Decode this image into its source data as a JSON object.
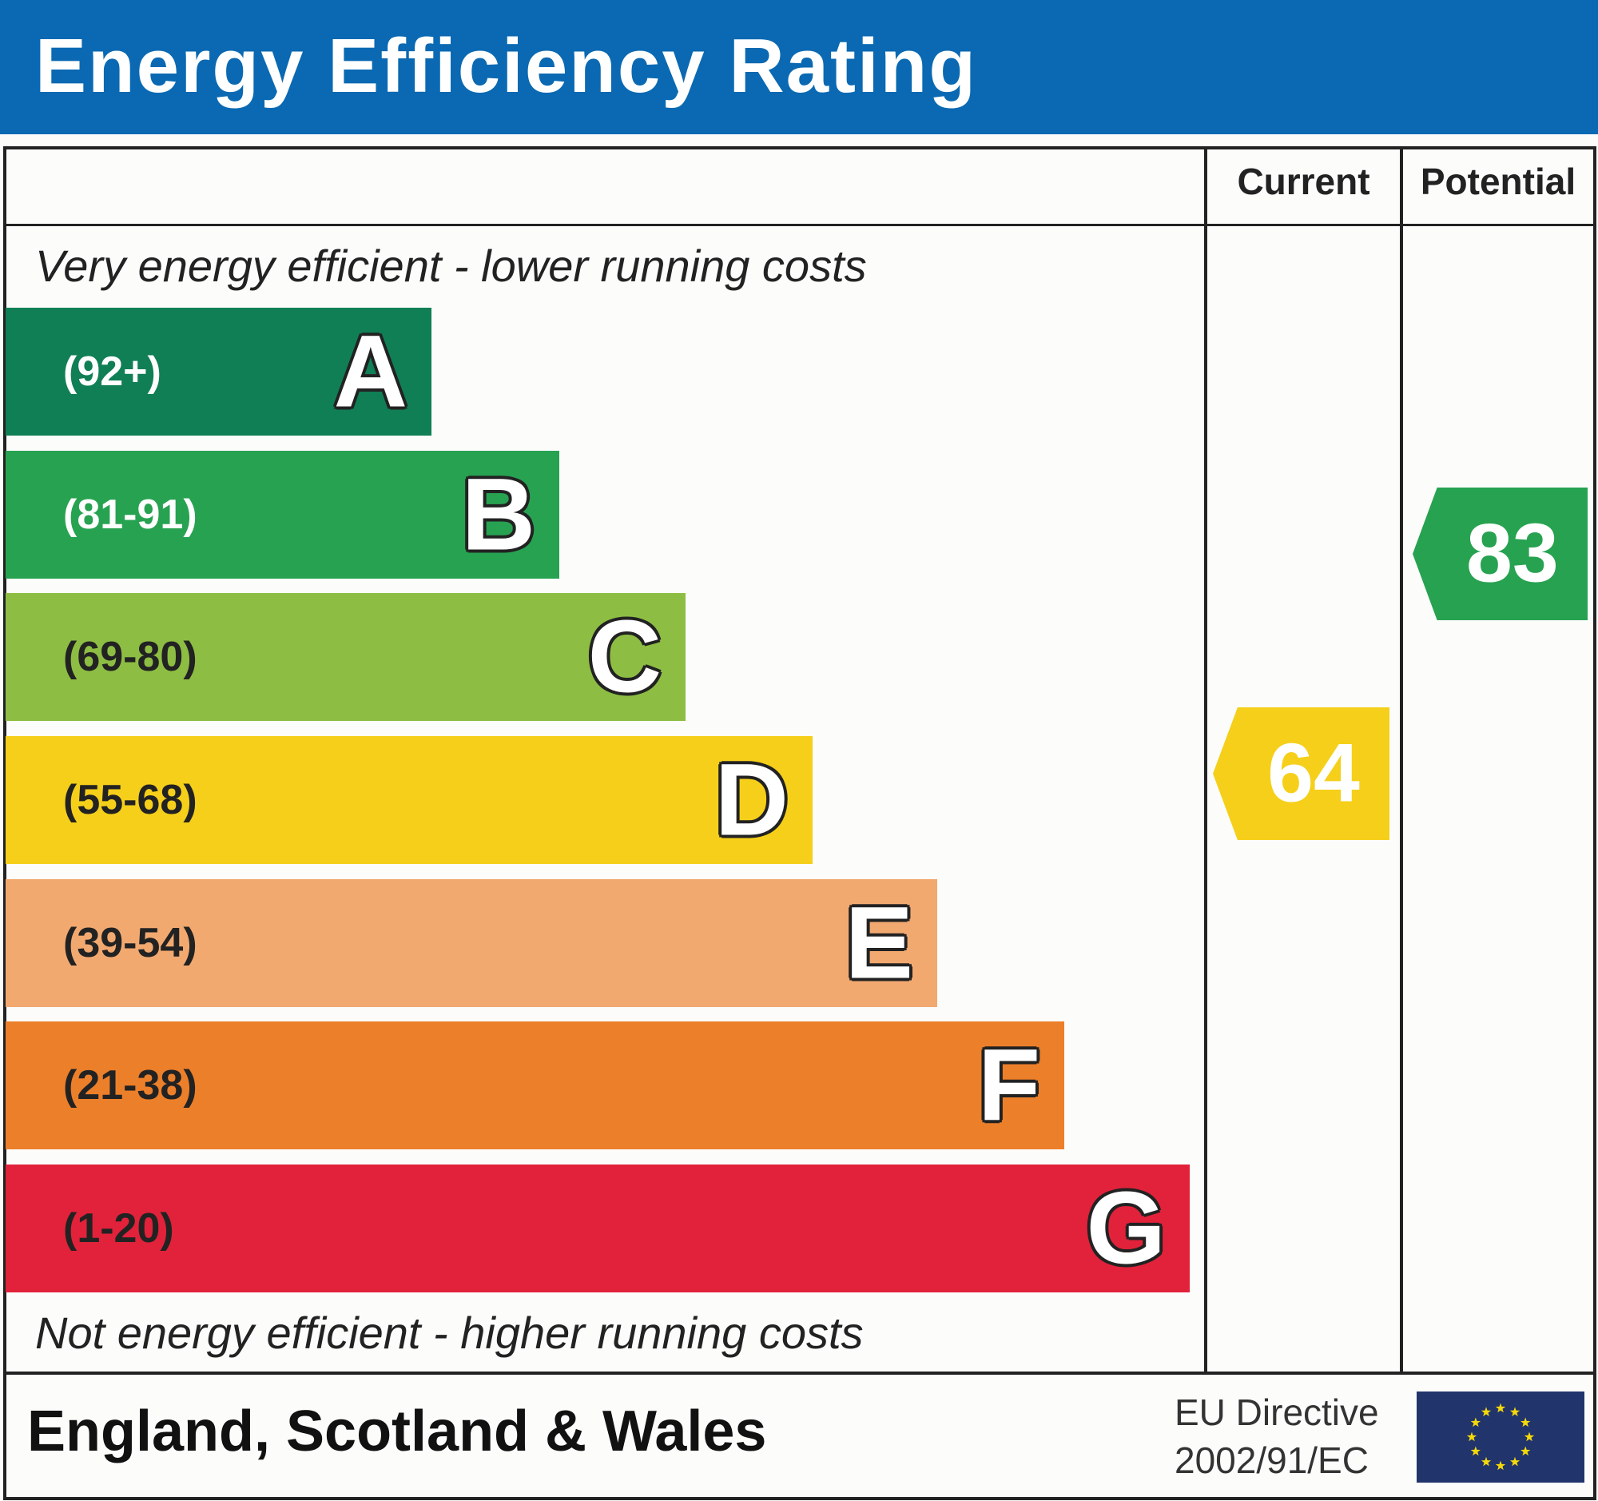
{
  "title": "Energy Efficiency Rating",
  "columns": {
    "current": "Current",
    "potential": "Potential"
  },
  "top_note": "Very energy efficient - lower running costs",
  "bottom_note": "Not energy efficient - higher running costs",
  "bands": [
    {
      "letter": "A",
      "range": "(92+)",
      "color": "#107f55",
      "text_color": "#ffffff"
    },
    {
      "letter": "B",
      "range": "(81-91)",
      "color": "#27a251",
      "text_color": "#ffffff"
    },
    {
      "letter": "C",
      "range": "(69-80)",
      "color": "#8dbe43",
      "text_color": "#222222"
    },
    {
      "letter": "D",
      "range": "(55-68)",
      "color": "#f5cf1a",
      "text_color": "#222222"
    },
    {
      "letter": "E",
      "range": "(39-54)",
      "color": "#f2a970",
      "text_color": "#222222"
    },
    {
      "letter": "F",
      "range": "(21-38)",
      "color": "#ec7f2a",
      "text_color": "#222222"
    },
    {
      "letter": "G",
      "range": "(1-20)",
      "color": "#e1223a",
      "text_color": "#222222"
    }
  ],
  "current": {
    "value": "64",
    "band": "D",
    "color": "#f5cf1a"
  },
  "potential": {
    "value": "83",
    "band": "B",
    "color": "#27a251"
  },
  "footer": {
    "region": "England, Scotland & Wales",
    "directive_line1": "EU Directive",
    "directive_line2": "2002/91/EC"
  },
  "colors": {
    "header": "#0a69b2",
    "eu_flag": "#21346b",
    "eu_stars": "#f5d90a"
  }
}
